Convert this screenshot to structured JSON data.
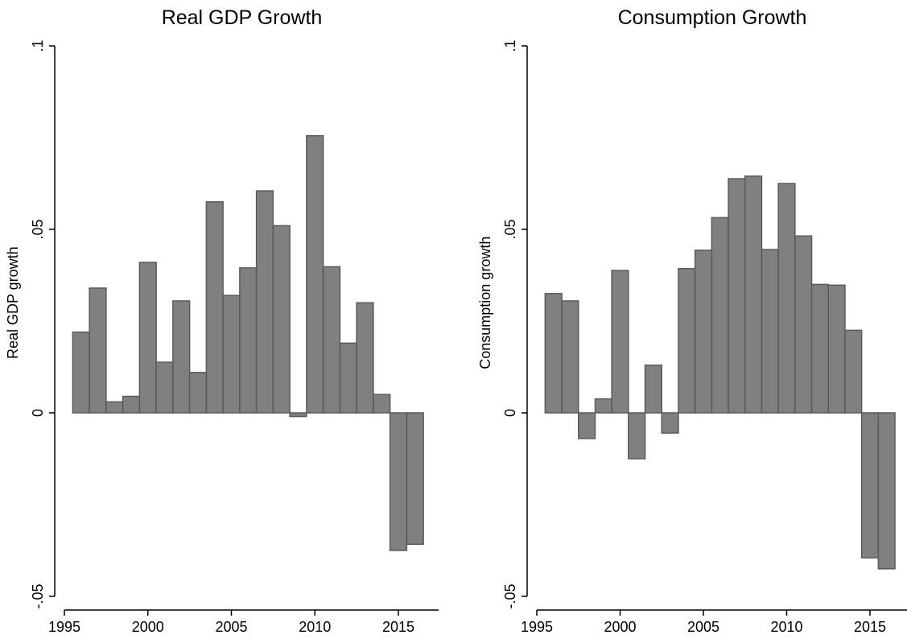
{
  "chart_data": [
    {
      "type": "bar",
      "title": "Real GDP Growth",
      "xlabel": "",
      "ylabel": "Real GDP growth",
      "ylim": [
        -0.05,
        0.1
      ],
      "xlim": [
        1995,
        2017
      ],
      "yticks": [
        -0.05,
        0,
        0.05,
        0.1
      ],
      "ytick_labels": [
        "-.05",
        "0",
        ".05",
        ".1"
      ],
      "xticks": [
        1995,
        2000,
        2005,
        2010,
        2015
      ],
      "xtick_labels": [
        "1995",
        "2000",
        "2005",
        "2010",
        "2015"
      ],
      "grid": false,
      "bar_color": "#808080",
      "bar_edge_color": "#5a5a5a",
      "x": [
        1996,
        1997,
        1998,
        1999,
        2000,
        2001,
        2002,
        2003,
        2004,
        2005,
        2006,
        2007,
        2008,
        2009,
        2010,
        2011,
        2012,
        2013,
        2014,
        2015,
        2016
      ],
      "values": [
        0.022,
        0.034,
        0.003,
        0.0045,
        0.041,
        0.0138,
        0.0305,
        0.011,
        0.0575,
        0.032,
        0.0395,
        0.0605,
        0.051,
        -0.001,
        0.0755,
        0.0398,
        0.019,
        0.03,
        0.005,
        -0.0375,
        -0.0358
      ]
    },
    {
      "type": "bar",
      "title": "Consumption Growth",
      "xlabel": "",
      "ylabel": "Consumption growth",
      "ylim": [
        -0.05,
        0.1
      ],
      "xlim": [
        1995,
        2017
      ],
      "yticks": [
        -0.05,
        0,
        0.05,
        0.1
      ],
      "ytick_labels": [
        "-.05",
        "0",
        ".05",
        ".1"
      ],
      "xticks": [
        1995,
        2000,
        2005,
        2010,
        2015
      ],
      "xtick_labels": [
        "1995",
        "2000",
        "2005",
        "2010",
        "2015"
      ],
      "grid": false,
      "bar_color": "#808080",
      "bar_edge_color": "#5a5a5a",
      "x": [
        1996,
        1997,
        1998,
        1999,
        2000,
        2001,
        2002,
        2003,
        2004,
        2005,
        2006,
        2007,
        2008,
        2009,
        2010,
        2011,
        2012,
        2013,
        2014,
        2015,
        2016
      ],
      "values": [
        0.0325,
        0.0305,
        -0.007,
        0.0038,
        0.0388,
        -0.0125,
        0.013,
        -0.0055,
        0.0393,
        0.0443,
        0.0532,
        0.0638,
        0.0645,
        0.0445,
        0.0625,
        0.0482,
        0.035,
        0.0348,
        0.0225,
        -0.0395,
        -0.0425
      ]
    }
  ]
}
